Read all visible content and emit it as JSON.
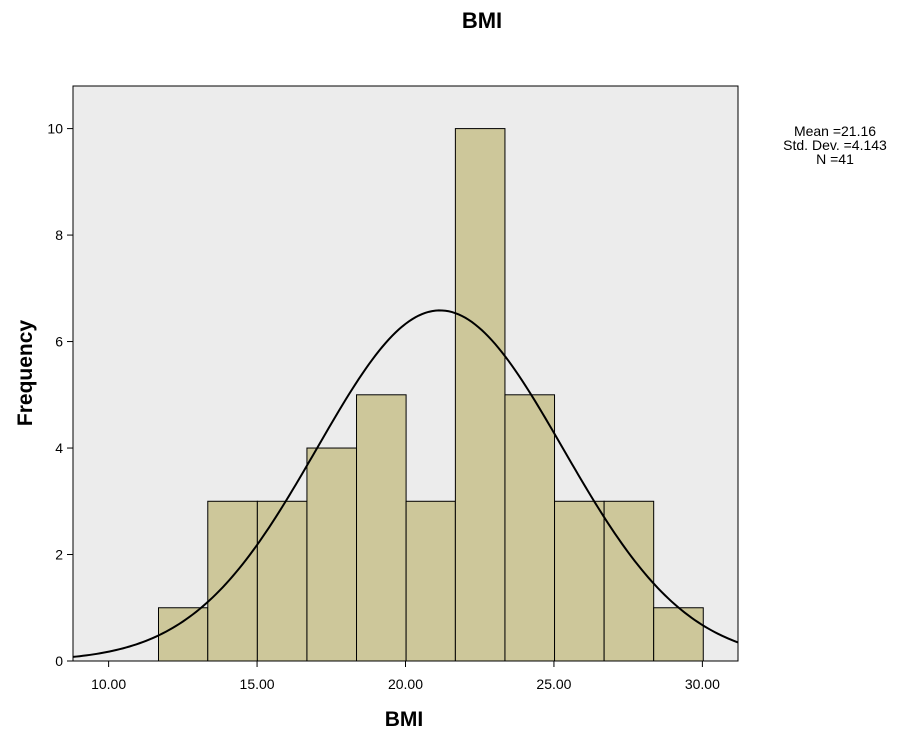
{
  "chart_data": {
    "type": "bar",
    "title": "BMI",
    "xlabel": "BMI",
    "ylabel": "Frequency",
    "xlim": [
      8.8,
      31.2
    ],
    "ylim": [
      0,
      10.8
    ],
    "x_ticks": [
      "10.00",
      "15.00",
      "20.00",
      "25.00",
      "30.00"
    ],
    "y_ticks": [
      "0",
      "2",
      "4",
      "6",
      "8",
      "10"
    ],
    "bins": [
      {
        "start": 11.68,
        "end": 13.34,
        "count": 1
      },
      {
        "start": 13.34,
        "end": 15.01,
        "count": 3
      },
      {
        "start": 15.01,
        "end": 16.68,
        "count": 3
      },
      {
        "start": 16.68,
        "end": 18.35,
        "count": 4
      },
      {
        "start": 18.35,
        "end": 20.02,
        "count": 5
      },
      {
        "start": 20.02,
        "end": 21.68,
        "count": 3
      },
      {
        "start": 21.68,
        "end": 23.35,
        "count": 10
      },
      {
        "start": 23.35,
        "end": 25.02,
        "count": 5
      },
      {
        "start": 25.02,
        "end": 26.69,
        "count": 3
      },
      {
        "start": 26.69,
        "end": 28.36,
        "count": 3
      },
      {
        "start": 28.36,
        "end": 30.03,
        "count": 1
      }
    ],
    "normal_curve": {
      "mean": 21.16,
      "std_dev": 4.143,
      "n": 41,
      "bin_width": 1.668
    },
    "statistics": [
      "Mean =21.16",
      "Std. Dev. =4.143",
      "N =41"
    ],
    "colors": {
      "bar_fill": "#cdc79a",
      "plot_background": "#ececec",
      "stroke": "#000000"
    },
    "grid": false
  }
}
